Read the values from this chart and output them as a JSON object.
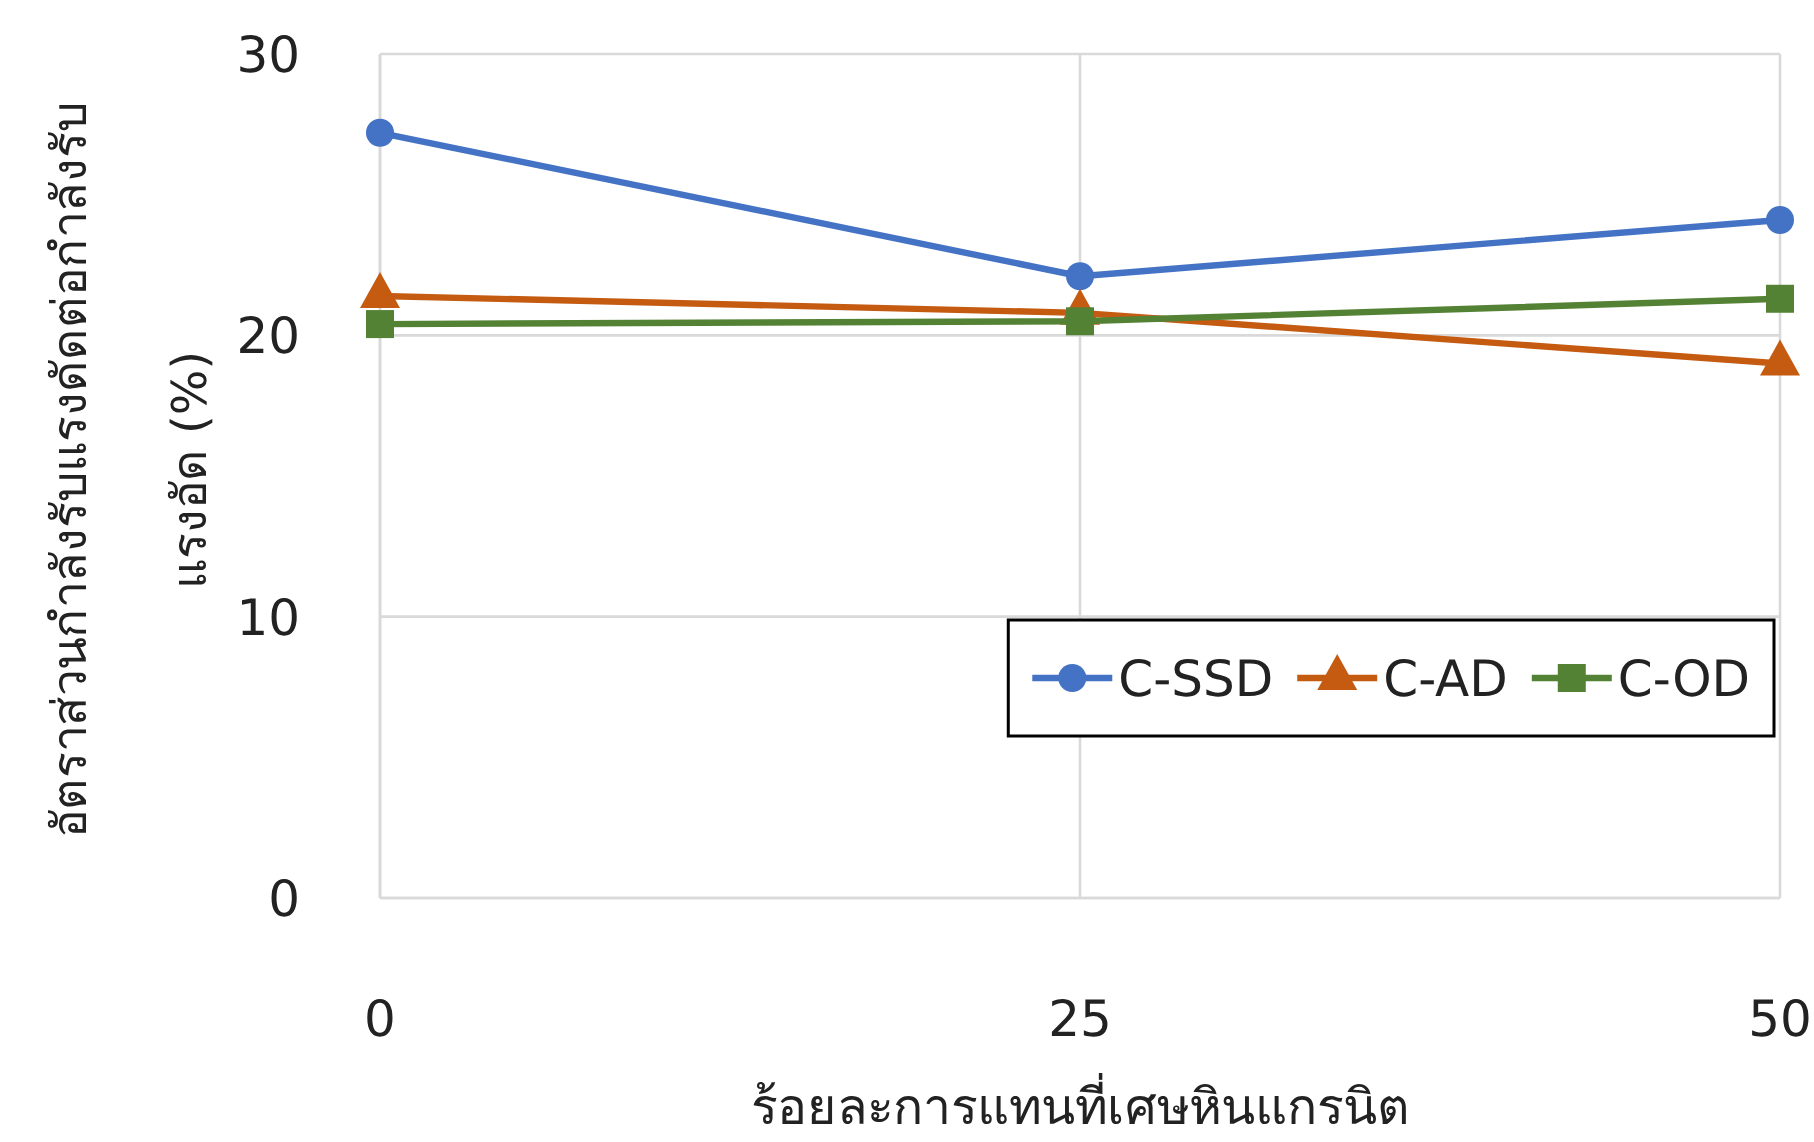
{
  "chart_data": {
    "type": "line",
    "xlabel": "ร้อยละการแทนที่เศษหินแกรนิต",
    "ylabel": "อัตราส่วนกำลังรับแรงดัดต่อกำลังรับแรงอัด (%)",
    "x": [
      0,
      25,
      50
    ],
    "xlim": [
      0,
      50
    ],
    "xticks": [
      0,
      25,
      50
    ],
    "ylim": [
      0,
      30
    ],
    "yticks": [
      0,
      10,
      20,
      30
    ],
    "grid": true,
    "legend": "bottom right",
    "line_style": "solid",
    "series": [
      {
        "name": "C-SSD",
        "color": "#4472c4",
        "marker": "circle",
        "values": [
          27.2,
          22.1,
          24.1
        ]
      },
      {
        "name": "C-AD",
        "color": "#c55a11",
        "marker": "triangle",
        "values": [
          21.4,
          20.8,
          19.0
        ]
      },
      {
        "name": "C-OD",
        "color": "#548235",
        "marker": "square",
        "values": [
          20.4,
          20.5,
          21.3
        ]
      }
    ]
  }
}
